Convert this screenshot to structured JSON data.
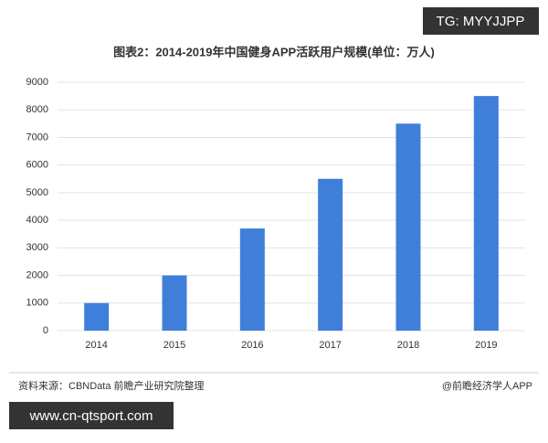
{
  "chart_data": {
    "type": "bar",
    "title": "图表2：2014-2019年中国健身APP活跃用户规模(单位：万人)",
    "categories": [
      "2014",
      "2015",
      "2016",
      "2017",
      "2018",
      "2019"
    ],
    "values": [
      1000,
      2000,
      3700,
      5500,
      7500,
      8500
    ],
    "color": "#3f7fd9",
    "ylim": [
      0,
      9000
    ],
    "yticks": [
      0,
      1000,
      2000,
      3000,
      4000,
      5000,
      6000,
      7000,
      8000,
      9000
    ],
    "grid": true,
    "source": "资料来源：CBNData 前瞻产业研究院整理",
    "credit": "@前瞻经济学人APP",
    "overlays": [
      "TG: MYYJJPP",
      "www.cn-qtsport.com"
    ]
  }
}
